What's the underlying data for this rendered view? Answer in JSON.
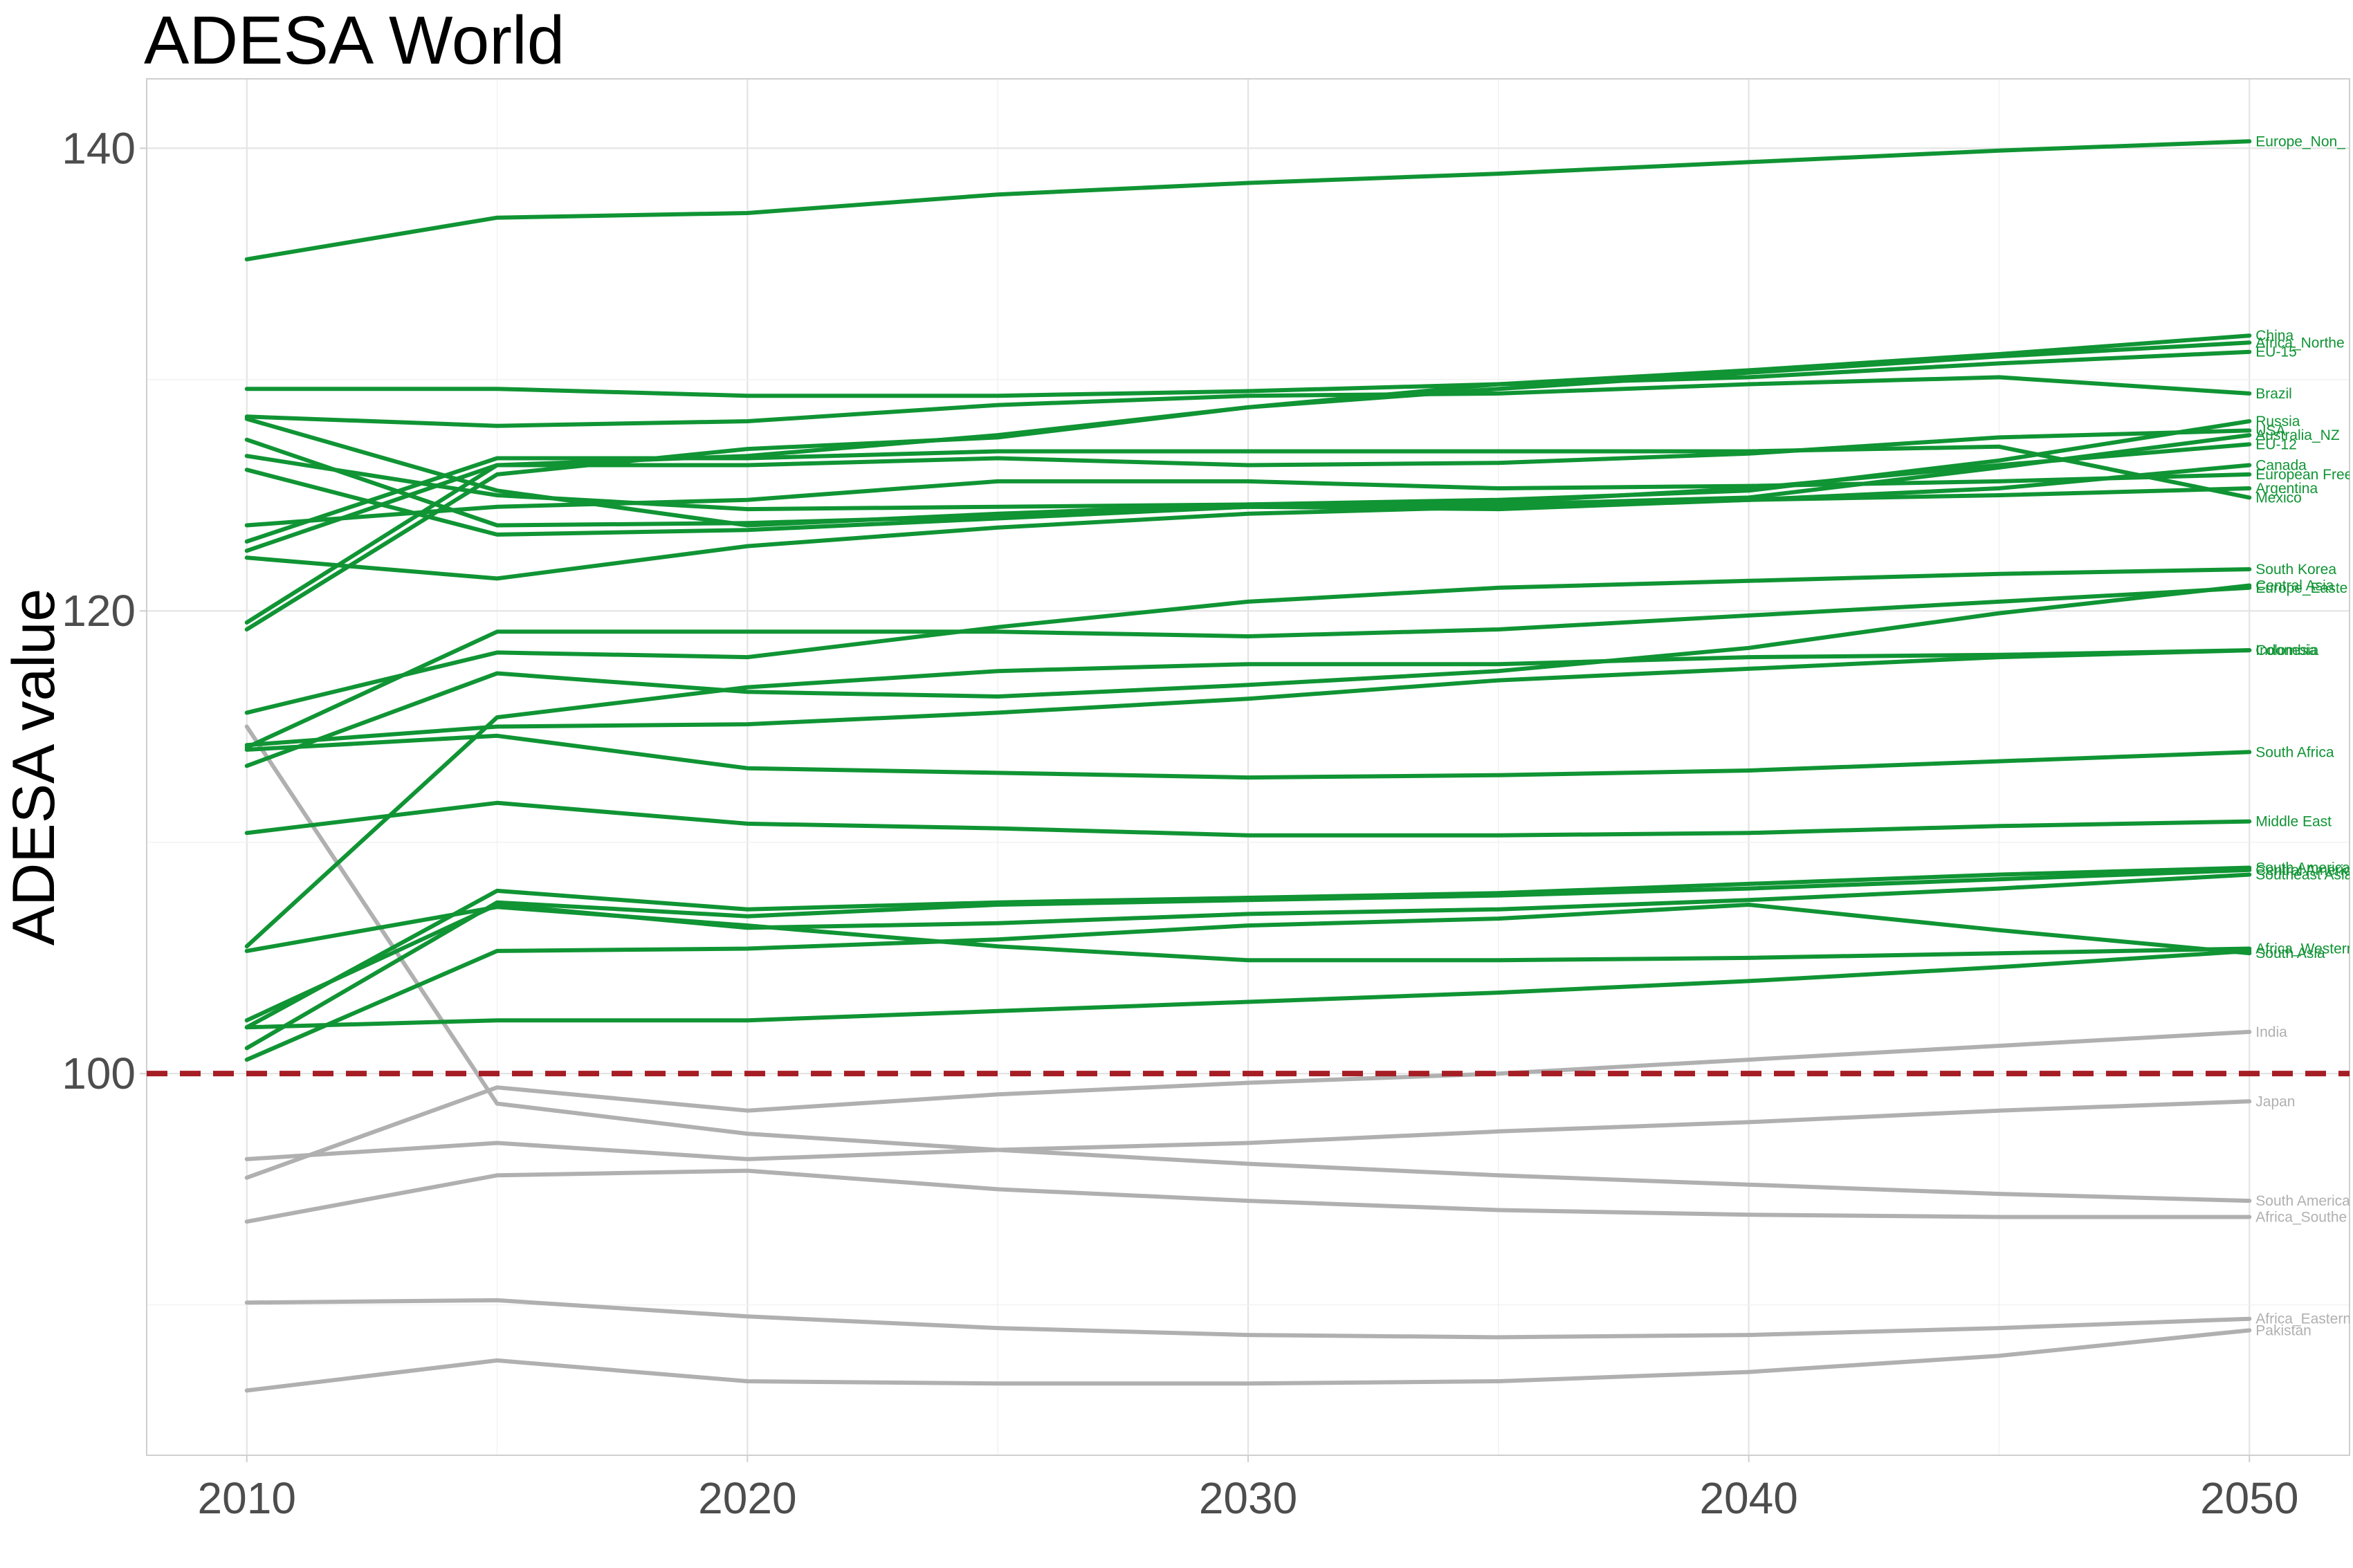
{
  "chart_data": {
    "type": "line",
    "title": "ADESA World",
    "xlabel": "",
    "ylabel": "ADESA value",
    "xlim": [
      2008,
      2052
    ],
    "ylim": [
      83.5,
      143
    ],
    "x_ticks": [
      2010,
      2020,
      2030,
      2040,
      2050
    ],
    "y_ticks": [
      100,
      120,
      140
    ],
    "grid": true,
    "reference_line": {
      "y": 100,
      "style": "dashed",
      "color": "#a61d24"
    },
    "colors": {
      "above": "#109434",
      "below": "#b0b0b0"
    },
    "x": [
      2010,
      2015,
      2020,
      2025,
      2030,
      2035,
      2040,
      2045,
      2050
    ],
    "series": [
      {
        "name": "Europe_Non_",
        "group": "above",
        "values": [
          135.2,
          137.0,
          137.2,
          138.0,
          138.5,
          138.9,
          139.4,
          139.9,
          140.3
        ]
      },
      {
        "name": "China",
        "group": "above",
        "values": [
          119.5,
          126.3,
          126.7,
          127.6,
          128.8,
          129.8,
          130.4,
          131.1,
          131.9
        ]
      },
      {
        "name": "Africa_Northe",
        "group": "above",
        "values": [
          119.2,
          125.9,
          127.0,
          127.5,
          128.8,
          129.6,
          130.3,
          131.0,
          131.6
        ]
      },
      {
        "name": "EU-15",
        "group": "above",
        "values": [
          129.6,
          129.6,
          129.3,
          129.3,
          129.5,
          129.8,
          130.1,
          130.7,
          131.2
        ]
      },
      {
        "name": "Russia",
        "group": "above",
        "values": [
          128.3,
          125.2,
          123.7,
          124.2,
          124.6,
          124.8,
          125.2,
          126.5,
          128.2
        ]
      },
      {
        "name": "Brazil",
        "group": "above",
        "values": [
          128.4,
          128.0,
          128.2,
          128.9,
          129.3,
          129.4,
          129.8,
          130.1,
          129.4
        ]
      },
      {
        "name": "Australia_NZ",
        "group": "above",
        "values": [
          127.4,
          123.7,
          123.8,
          124.1,
          124.5,
          124.6,
          124.9,
          126.2,
          127.6
        ]
      },
      {
        "name": "EU-12",
        "group": "above",
        "values": [
          126.7,
          125.0,
          124.4,
          124.5,
          124.6,
          124.7,
          125.3,
          126.3,
          127.2
        ]
      },
      {
        "name": "Canada",
        "group": "above",
        "values": [
          126.1,
          123.3,
          123.5,
          124.0,
          124.5,
          124.4,
          124.8,
          125.3,
          126.3
        ]
      },
      {
        "name": "European Free",
        "group": "above",
        "values": [
          123.7,
          124.5,
          124.8,
          125.6,
          125.6,
          125.3,
          125.4,
          125.6,
          125.9
        ]
      },
      {
        "name": "USA",
        "group": "above",
        "values": [
          122.6,
          126.3,
          126.3,
          126.6,
          126.3,
          126.4,
          126.8,
          127.5,
          127.8
        ]
      },
      {
        "name": "Argentina",
        "group": "above",
        "values": [
          122.3,
          121.4,
          122.8,
          123.6,
          124.2,
          124.5,
          124.8,
          125.0,
          125.3
        ]
      },
      {
        "name": "Mexico",
        "group": "above",
        "values": [
          123.0,
          126.6,
          126.6,
          126.9,
          126.9,
          126.9,
          126.9,
          127.1,
          124.9
        ]
      },
      {
        "name": "South Korea",
        "group": "above",
        "values": [
          115.6,
          118.2,
          118.0,
          119.3,
          120.4,
          121.0,
          121.3,
          121.6,
          121.8
        ]
      },
      {
        "name": "Central Asia",
        "group": "above",
        "values": [
          113.3,
          117.3,
          116.5,
          116.3,
          116.8,
          117.4,
          118.4,
          119.9,
          121.1
        ]
      },
      {
        "name": "Europe_Easte",
        "group": "above",
        "values": [
          114.1,
          119.1,
          119.1,
          119.1,
          118.9,
          119.2,
          119.8,
          120.4,
          121.0
        ]
      },
      {
        "name": "Colombia",
        "group": "above",
        "values": [
          105.5,
          115.4,
          116.7,
          117.4,
          117.7,
          117.7,
          118.0,
          118.1,
          118.3
        ]
      },
      {
        "name": "Indonesia",
        "group": "above",
        "values": [
          114.2,
          115.0,
          115.1,
          115.6,
          116.2,
          117.0,
          117.5,
          118.0,
          118.3
        ]
      },
      {
        "name": "South Africa",
        "group": "above",
        "values": [
          114.0,
          114.6,
          113.2,
          113.0,
          112.8,
          112.9,
          113.1,
          113.5,
          113.9
        ]
      },
      {
        "name": "Middle East",
        "group": "above",
        "values": [
          110.4,
          111.7,
          110.8,
          110.6,
          110.3,
          110.3,
          110.4,
          110.7,
          110.9
        ]
      },
      {
        "name": "South America",
        "group": "above",
        "values": [
          102.0,
          107.9,
          107.1,
          107.4,
          107.6,
          107.8,
          108.2,
          108.6,
          108.9
        ]
      },
      {
        "name": "Central America",
        "group": "above",
        "values": [
          101.1,
          107.4,
          106.8,
          107.3,
          107.5,
          107.7,
          108.0,
          108.4,
          108.8
        ]
      },
      {
        "name": "Southeast Asia",
        "group": "above",
        "values": [
          102.3,
          107.3,
          106.3,
          106.5,
          106.9,
          107.1,
          107.5,
          108.0,
          108.6
        ]
      },
      {
        "name": "Africa_Western",
        "group": "above",
        "values": [
          105.3,
          107.2,
          106.4,
          105.5,
          104.9,
          104.9,
          105.0,
          105.2,
          105.4
        ]
      },
      {
        "name": "South Asia",
        "group": "above",
        "values": [
          100.6,
          105.3,
          105.4,
          105.8,
          106.4,
          106.7,
          107.3,
          106.2,
          105.2
        ]
      },
      {
        "name": "",
        "group": "above",
        "values": [
          102.0,
          102.3,
          102.3,
          102.7,
          103.1,
          103.5,
          104.0,
          104.6,
          105.3
        ]
      },
      {
        "name": "India",
        "group": "below",
        "values": [
          95.5,
          99.4,
          98.4,
          99.1,
          99.6,
          100.0,
          100.6,
          101.2,
          101.8
        ]
      },
      {
        "name": "Japan",
        "group": "below",
        "values": [
          96.3,
          97.0,
          96.3,
          96.7,
          97.0,
          97.5,
          97.9,
          98.4,
          98.8
        ]
      },
      {
        "name": "South America",
        "group": "below",
        "values": [
          115.0,
          98.7,
          97.4,
          96.7,
          96.1,
          95.6,
          95.2,
          94.8,
          94.5
        ]
      },
      {
        "name": "Africa_Southe",
        "group": "below",
        "values": [
          93.6,
          95.6,
          95.8,
          95.0,
          94.5,
          94.1,
          93.9,
          93.8,
          93.8
        ]
      },
      {
        "name": "Africa_Eastern",
        "group": "below",
        "values": [
          90.1,
          90.2,
          89.5,
          89.0,
          88.7,
          88.6,
          88.7,
          89.0,
          89.4
        ]
      },
      {
        "name": "Pakistan",
        "group": "below",
        "values": [
          86.3,
          87.6,
          86.7,
          86.6,
          86.6,
          86.7,
          87.1,
          87.8,
          88.9
        ]
      }
    ]
  }
}
